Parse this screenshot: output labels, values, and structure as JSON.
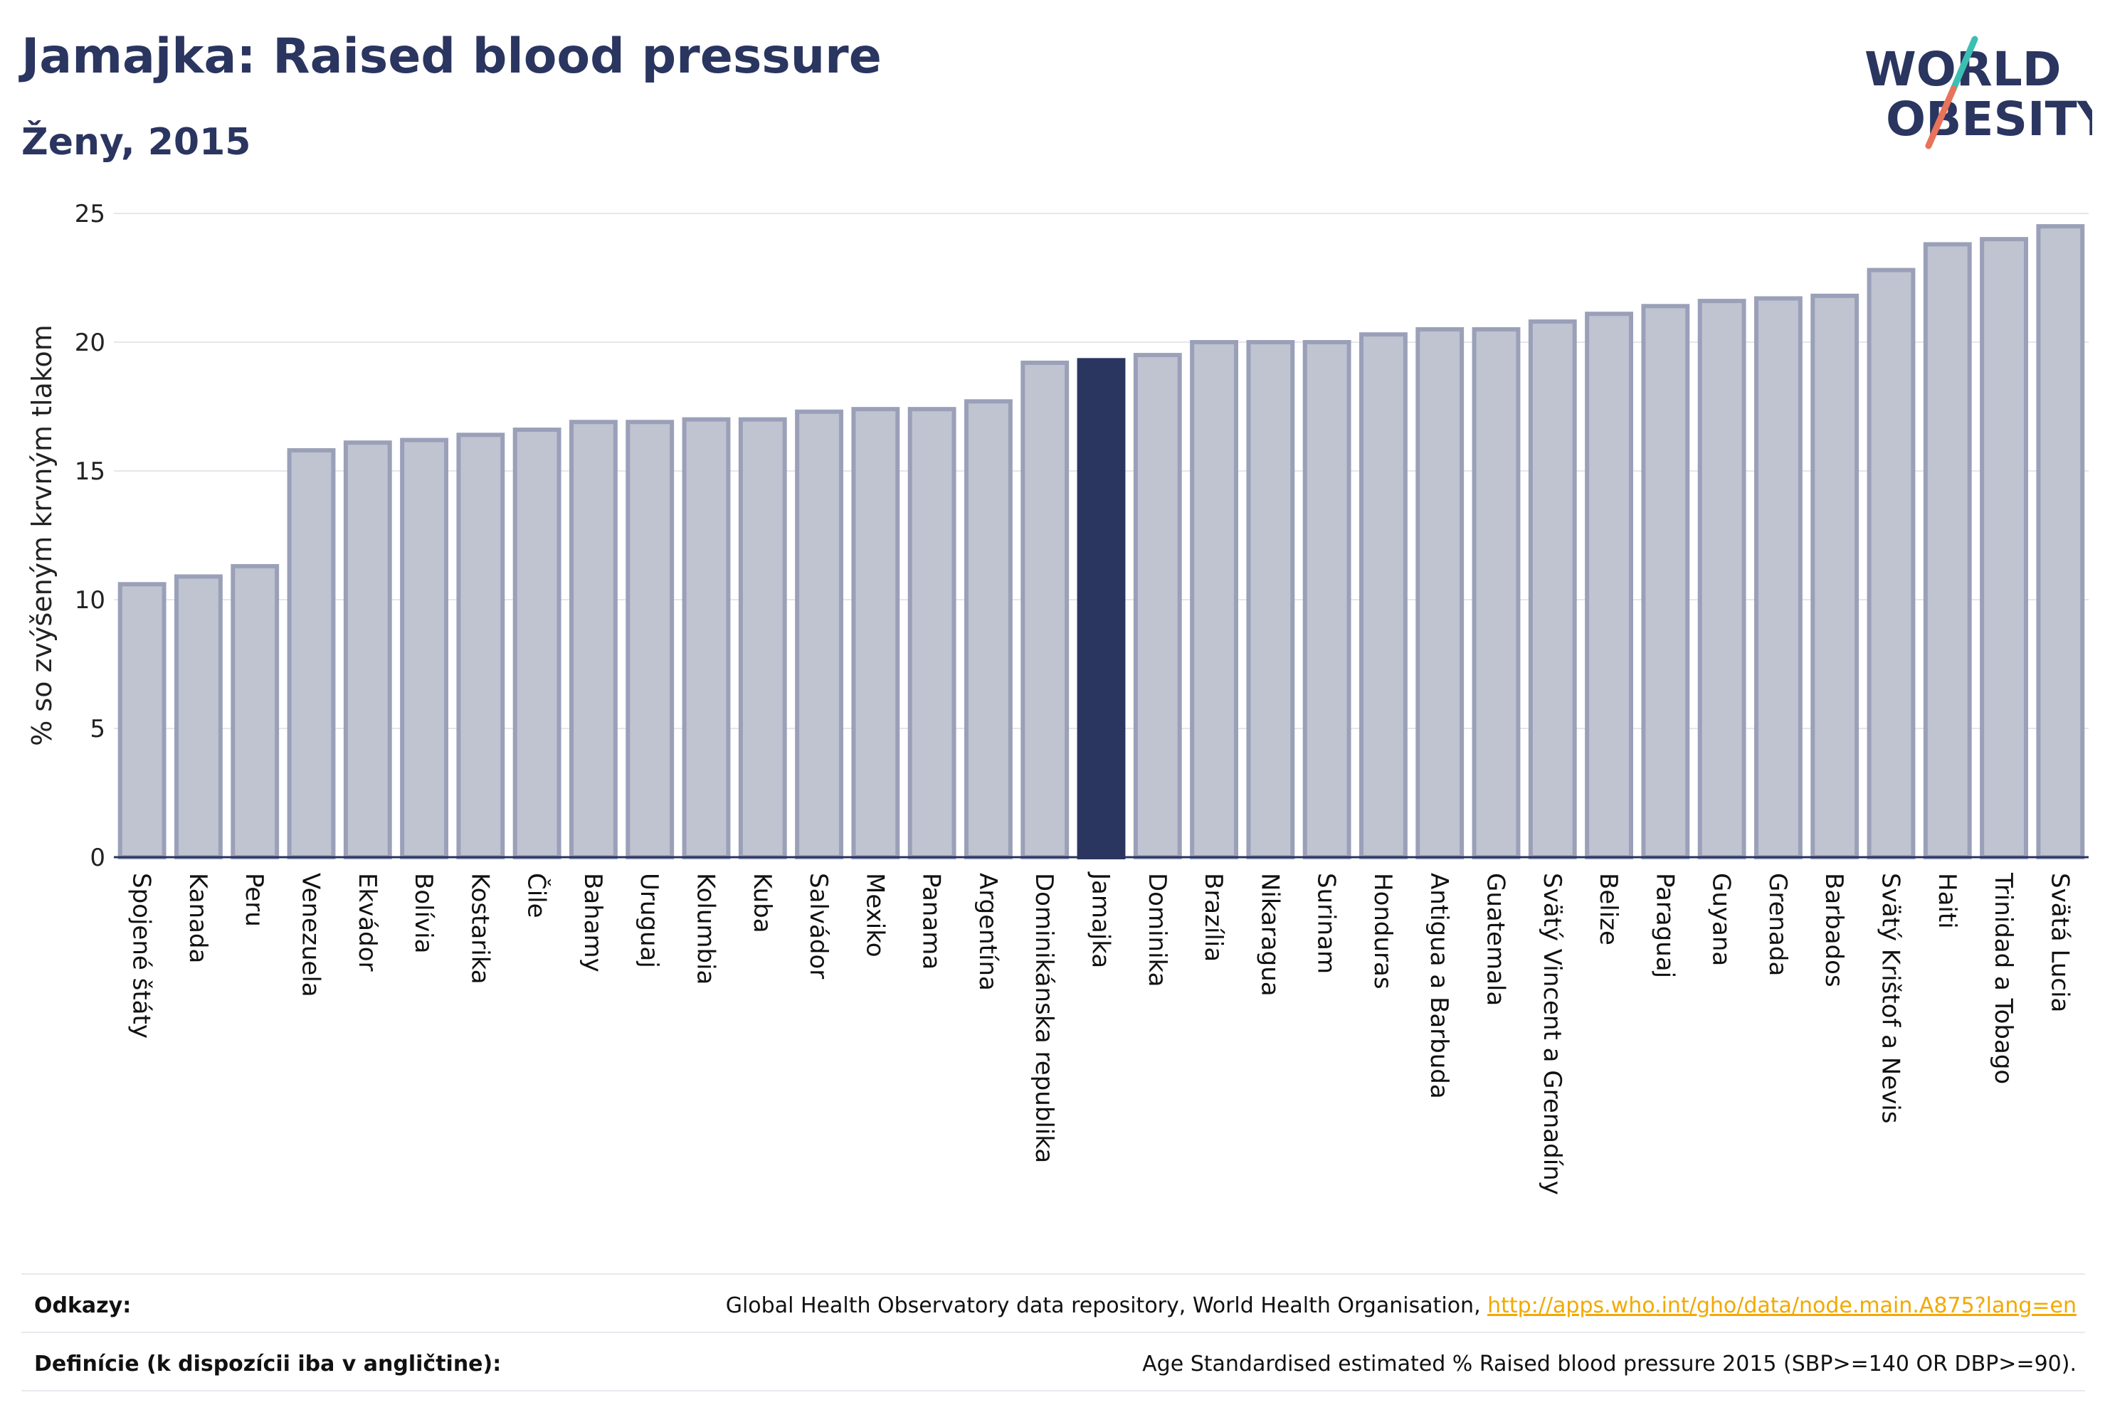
{
  "header": {
    "title": "Jamajka: Raised blood pressure",
    "subtitle": "Ženy, 2015"
  },
  "logo": {
    "line1": "WORLD",
    "line2": "OBESITY"
  },
  "chart_data": {
    "type": "bar",
    "ylabel": "% so zvýšeným krvným tlakom",
    "ylim": [
      0,
      25
    ],
    "yticks": [
      0,
      5,
      10,
      15,
      20,
      25
    ],
    "grid": true,
    "highlight": "Jamajka",
    "colors": {
      "bar": "#c0c3d0",
      "bar_edge": "#9aa0b8",
      "highlight": "#2a3560"
    },
    "categories": [
      "Spojené štáty",
      "Kanada",
      "Peru",
      "Venezuela",
      "Ekvádor",
      "Bolívia",
      "Kostarika",
      "Čile",
      "Bahamy",
      "Uruguaj",
      "Kolumbia",
      "Kuba",
      "Salvádor",
      "Mexiko",
      "Panama",
      "Argentína",
      "Dominikánska republika",
      "Jamajka",
      "Dominika",
      "Brazília",
      "Nikaragua",
      "Surinam",
      "Honduras",
      "Antigua a Barbuda",
      "Guatemala",
      "Svätý Vincent a Grenadíny",
      "Belize",
      "Paraguaj",
      "Guyana",
      "Grenada",
      "Barbados",
      "Svätý Krištof a Nevis",
      "Haiti",
      "Trinidad a Tobago",
      "Svätá Lucia"
    ],
    "values": [
      10.6,
      10.9,
      11.3,
      15.8,
      16.1,
      16.2,
      16.4,
      16.6,
      16.9,
      16.9,
      17.0,
      17.0,
      17.3,
      17.4,
      17.4,
      17.7,
      19.2,
      19.3,
      19.5,
      20.0,
      20.0,
      20.0,
      20.3,
      20.5,
      20.5,
      20.8,
      21.1,
      21.4,
      21.6,
      21.7,
      21.8,
      22.8,
      23.8,
      24.0,
      24.5
    ]
  },
  "footer": {
    "sources_label": "Odkazy:",
    "sources_text": "Global Health Observatory data repository, World Health Organisation, ",
    "sources_link": "http://apps.who.int/gho/data/node.main.A875?lang=en",
    "definition_label": "Definície (k dispozícii iba v angličtine):",
    "definition_text": "Age Standardised estimated % Raised blood pressure 2015 (SBP>=140 OR DBP>=90)."
  }
}
